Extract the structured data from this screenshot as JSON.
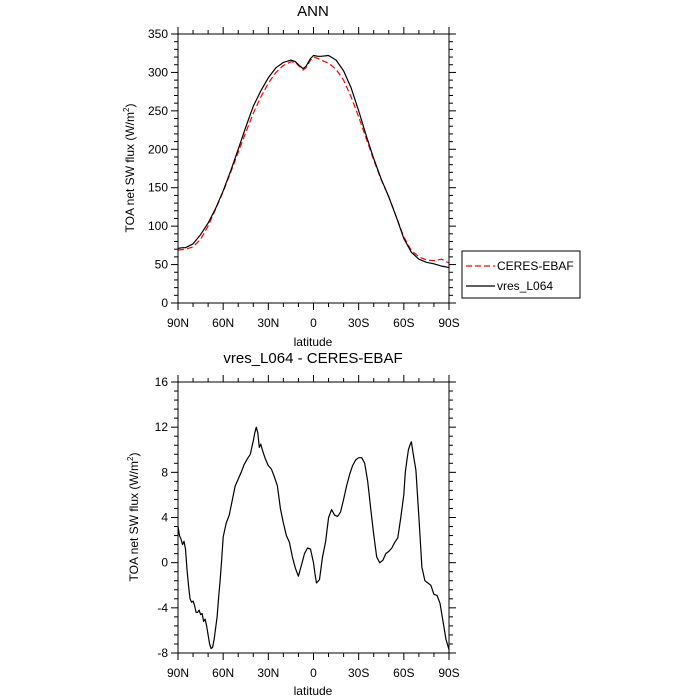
{
  "chart_data": [
    {
      "type": "line",
      "title": "ANN",
      "xlabel": "latitude",
      "ylabel_main": "TOA net SW flux (W/m",
      "ylabel_sup": "2",
      "ylabel_close": ")",
      "xlim": [
        90,
        -90
      ],
      "ylim": [
        0,
        350
      ],
      "xticks": [
        90,
        60,
        30,
        0,
        -30,
        -60,
        -90
      ],
      "xtick_labels": [
        "90N",
        "60N",
        "30N",
        "0",
        "30S",
        "60S",
        "90S"
      ],
      "yticks": [
        0,
        50,
        100,
        150,
        200,
        250,
        300,
        350
      ],
      "ytick_labels": [
        "0",
        "50",
        "100",
        "150",
        "200",
        "250",
        "300",
        "350"
      ],
      "legend_position": "outside-right",
      "series": [
        {
          "name": "CERES-EBAF",
          "color": "#ff0000",
          "dash": "dashed",
          "x": [
            90,
            85,
            80,
            75,
            70,
            65,
            60,
            55,
            50,
            45,
            40,
            35,
            30,
            25,
            20,
            15,
            12,
            10,
            7,
            5,
            2,
            0,
            -3,
            -5,
            -10,
            -15,
            -20,
            -25,
            -30,
            -35,
            -40,
            -45,
            -50,
            -55,
            -60,
            -65,
            -70,
            -75,
            -80,
            -85,
            -88,
            -90
          ],
          "y": [
            69,
            70,
            73,
            83,
            100,
            122,
            145,
            170,
            196,
            222,
            247,
            268,
            286,
            300,
            309,
            314,
            313,
            309,
            303,
            306,
            316,
            320,
            318,
            316,
            312,
            304,
            290,
            268,
            242,
            214,
            186,
            160,
            138,
            112,
            86,
            68,
            60,
            56,
            55,
            57,
            54,
            52
          ]
        },
        {
          "name": "vres_L064",
          "color": "#000000",
          "dash": "solid",
          "x": [
            90,
            87,
            85,
            80,
            75,
            70,
            65,
            60,
            55,
            50,
            45,
            40,
            35,
            30,
            25,
            20,
            15,
            12,
            10,
            7,
            5,
            2,
            0,
            -3,
            -5,
            -10,
            -15,
            -20,
            -25,
            -30,
            -35,
            -40,
            -45,
            -50,
            -55,
            -60,
            -65,
            -70,
            -75,
            -80,
            -85,
            -88,
            -90
          ],
          "y": [
            71,
            72,
            72,
            77,
            89,
            104,
            123,
            146,
            172,
            200,
            229,
            256,
            276,
            293,
            306,
            313,
            316,
            314,
            310,
            305,
            308,
            318,
            322,
            321,
            321,
            322,
            316,
            302,
            280,
            250,
            218,
            188,
            161,
            138,
            112,
            84,
            66,
            57,
            53,
            51,
            48,
            47,
            46
          ]
        }
      ]
    },
    {
      "type": "line",
      "title": "vres_L064 - CERES-EBAF",
      "xlabel": "latitude",
      "ylabel_main": "TOA net SW flux (W/m",
      "ylabel_sup": "2",
      "ylabel_close": ")",
      "xlim": [
        90,
        -90
      ],
      "ylim": [
        -8,
        16
      ],
      "xticks": [
        90,
        60,
        30,
        0,
        -30,
        -60,
        -90
      ],
      "xtick_labels": [
        "90N",
        "60N",
        "30N",
        "0",
        "30S",
        "60S",
        "90S"
      ],
      "yticks": [
        -8,
        -4,
        0,
        4,
        8,
        12,
        16
      ],
      "ytick_labels": [
        "-8",
        "-4",
        "0",
        "4",
        "8",
        "12",
        "16"
      ],
      "series": [
        {
          "color": "#000000",
          "dash": "solid",
          "x": [
            90,
            89,
            88,
            87,
            86,
            85,
            84,
            83,
            82,
            81,
            80,
            79,
            78,
            77,
            76,
            75,
            74,
            73,
            72,
            71,
            70,
            69,
            68,
            67,
            66,
            65,
            64,
            63,
            62,
            61,
            60,
            58,
            56,
            54,
            52,
            50,
            48,
            46,
            44,
            42,
            40,
            39,
            38,
            37,
            36,
            35,
            34,
            32,
            30,
            28,
            26,
            24,
            22,
            20,
            18,
            16,
            14,
            12,
            10,
            8,
            6,
            4,
            2,
            0,
            -1,
            -2,
            -4,
            -6,
            -8,
            -10,
            -12,
            -14,
            -16,
            -18,
            -20,
            -22,
            -24,
            -26,
            -28,
            -30,
            -32,
            -34,
            -36,
            -38,
            -40,
            -42,
            -44,
            -46,
            -48,
            -50,
            -52,
            -54,
            -56,
            -58,
            -60,
            -61,
            -62,
            -63,
            -64,
            -65,
            -66,
            -68,
            -70,
            -72,
            -74,
            -76,
            -78,
            -80,
            -82,
            -84,
            -86,
            -88,
            -90
          ],
          "y": [
            3.2,
            2.4,
            2.1,
            1.6,
            1.9,
            1.2,
            -0.6,
            -2.0,
            -3.2,
            -3.5,
            -3.4,
            -3.8,
            -4.4,
            -4.4,
            -4.2,
            -4.6,
            -4.5,
            -5.2,
            -5.0,
            -5.6,
            -6.4,
            -7.2,
            -7.6,
            -7.5,
            -6.8,
            -5.8,
            -4.8,
            -3.0,
            -1.5,
            0.3,
            2.3,
            3.5,
            4.2,
            5.5,
            6.8,
            7.4,
            8.0,
            8.7,
            9.2,
            9.6,
            10.8,
            11.5,
            12.0,
            11.5,
            10.2,
            10.5,
            10.0,
            9.2,
            8.6,
            8.3,
            7.6,
            6.8,
            4.8,
            3.5,
            2.4,
            1.8,
            0.5,
            -0.5,
            -1.2,
            -0.2,
            0.8,
            1.3,
            1.2,
            0.0,
            -1.0,
            -1.8,
            -1.5,
            0.5,
            1.8,
            4.0,
            4.7,
            4.2,
            4.1,
            4.5,
            5.6,
            6.8,
            7.8,
            8.6,
            9.1,
            9.3,
            9.3,
            8.8,
            7.2,
            4.8,
            2.5,
            0.5,
            0.0,
            0.2,
            0.8,
            1.0,
            1.3,
            1.8,
            2.2,
            4.0,
            6.0,
            8.0,
            9.0,
            10.0,
            10.4,
            10.7,
            9.8,
            8.2,
            4.0,
            -0.4,
            -1.6,
            -1.8,
            -2.0,
            -2.8,
            -2.9,
            -3.6,
            -5.2,
            -6.8,
            -7.7
          ]
        }
      ]
    }
  ]
}
